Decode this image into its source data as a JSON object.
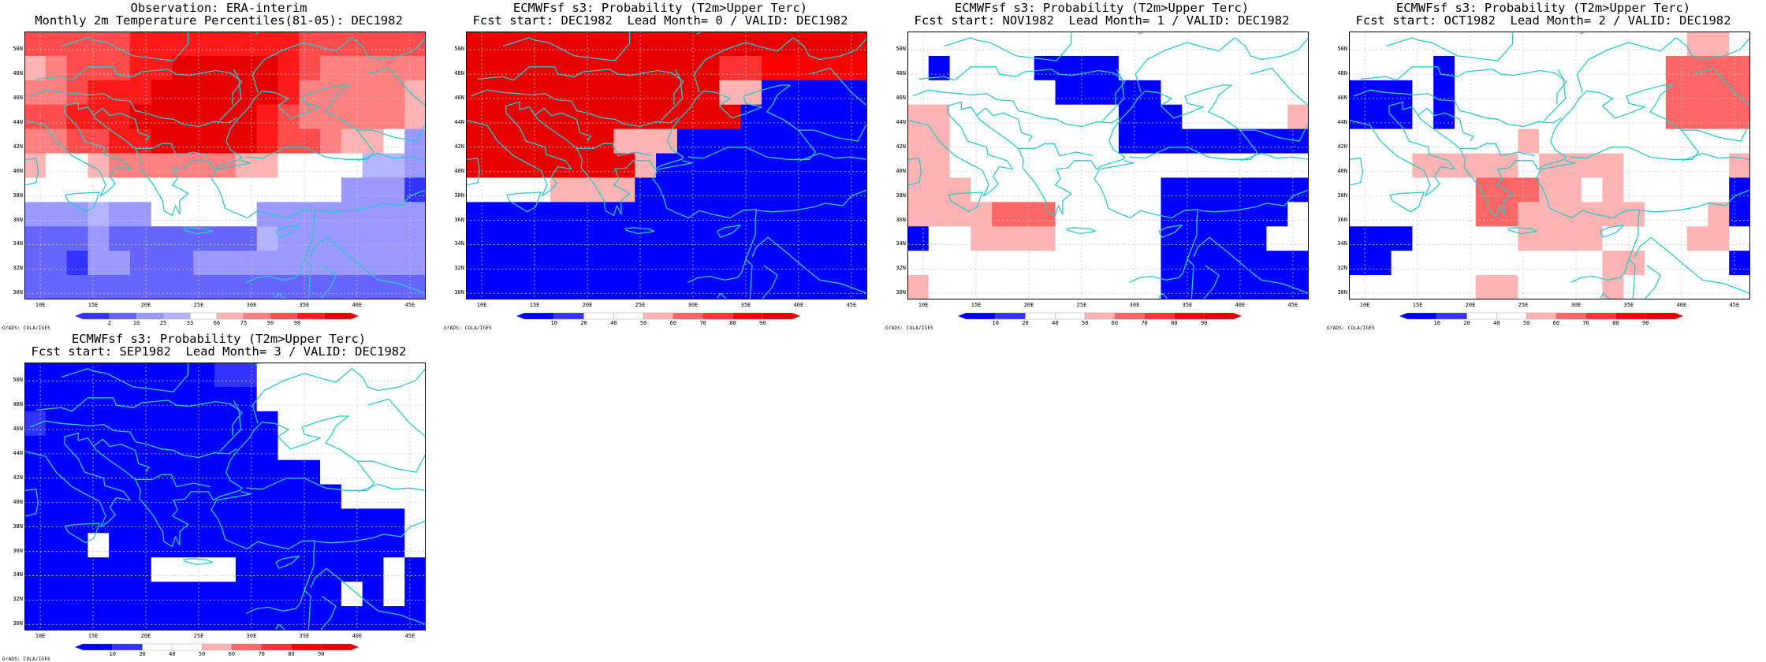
{
  "credit": "GrADS: COLA/IGES",
  "colors": {
    "coast": "#2ec8c8",
    "grid": "#c8c8c8",
    "observation_scale": [
      "#3333ff",
      "#6666ff",
      "#9999ff",
      "#b3b3ff",
      "#ffffff",
      "#ffb3b3",
      "#ff8080",
      "#ff4d4d",
      "#ff1a1a",
      "#e60000"
    ],
    "probability_scale": [
      "#0000ff",
      "#3333ff",
      "#ffffff",
      "#ffffff",
      "#ffb3b3",
      "#ff6666",
      "#ff3333",
      "#ff0000",
      "#e60000"
    ]
  },
  "axes": {
    "lat_labels": [
      "50N",
      "48N",
      "46N",
      "44N",
      "42N",
      "40N",
      "38N",
      "36N",
      "34N",
      "32N",
      "30N"
    ],
    "lon_labels": [
      "10E",
      "15E",
      "20E",
      "25E",
      "30E",
      "35E",
      "40E",
      "45E"
    ]
  },
  "panels": [
    {
      "id": "obs",
      "title_line1": "Observation: ERA-interim",
      "title_line2": "Monthly 2m Temperature Percentiles(81-05): DEC1982",
      "scale": "observation",
      "colorbar_labels": [
        "2",
        "10",
        "25",
        "33",
        "66",
        "75",
        "90",
        "98"
      ],
      "grid": [
        "7777788888888777777",
        "5677788999998766666",
        "6678889999998666665",
        "7788899999987666665",
        "6677889999987765542",
        "5445666666554444332",
        "4444444444444442220",
        "2223224444422222222",
        "1112111111132222222",
        "1102211122222222222",
        "1111111111111111111"
      ]
    },
    {
      "id": "lead0",
      "title_line1": "ECMWFsf s3: Probability (T2m>Upper Terc)",
      "title_line2": "Fcst start: DEC1982  Lead Month= 0 / VALID: DEC1982",
      "scale": "probability",
      "colorbar_labels": [
        "10",
        "20",
        "40",
        "50",
        "60",
        "70",
        "80",
        "90"
      ],
      "grid": [
        "8888888888888888888",
        "8888888888886677777",
        "8888888888884400000",
        "8888888888888000000",
        "8888888444000000000",
        "8888888840000000000",
        "3333444400000000000",
        "0000000000000000000",
        "0000000000000000000",
        "0000000000000000000",
        "0000000000000000000"
      ]
    },
    {
      "id": "lead1",
      "title_line1": "ECMWFsf s3: Probability (T2m>Upper Terc)",
      "title_line2": "Fcst start: NOV1982  Lead Month= 1 / VALID: DEC1982",
      "scale": "probability",
      "colorbar_labels": [
        "10",
        "20",
        "40",
        "50",
        "60",
        "70",
        "80",
        "90"
      ],
      "grid": [
        "2222222222222222222",
        "2022220000222222222",
        "2222222000002222222",
        "4422222222000222224",
        "4422222222000000000",
        "4422222222222222222",
        "4442222222220000000",
        "4444555222220000002",
        "0224444222220000022",
        "2222222222220000000",
        "4222222222220000000"
      ]
    },
    {
      "id": "lead2",
      "title_line1": "ECMWFsf s3: Probability (T2m>Upper Terc)",
      "title_line2": "Fcst start: OCT1982  Lead Month= 2 / VALID: DEC1982",
      "scale": "probability",
      "colorbar_labels": [
        "10",
        "20",
        "40",
        "50",
        "60",
        "70",
        "80",
        "90"
      ],
      "grid": [
        "2222222222222222442",
        "2222022222222225555",
        "0002022222222225555",
        "0002022222222225555",
        "2222222242222222222",
        "2224444424444222224",
        "2222225554424222220",
        "2222225544444422240",
        "0002222244442222442",
        "0022222222224422220",
        "2222224422224222222"
      ]
    },
    {
      "id": "lead3",
      "title_line1": "ECMWFsf s3: Probability (T2m>Upper Terc)",
      "title_line2": "Fcst start: SEP1982  Lead Month= 3 / VALID: DEC1982",
      "scale": "probability",
      "colorbar_labels": [
        "10",
        "20",
        "40",
        "50",
        "60",
        "70",
        "80",
        "90"
      ],
      "grid": [
        "0000000001122222222",
        "0000000000022222222",
        "1000000000002222222",
        "0000000000002222222",
        "0000000000000022222",
        "0000000000000002222",
        "0000000000000000002",
        "0002000000000000002",
        "0000002222000000020",
        "0000000000000002020",
        "0000000000000000000"
      ]
    }
  ]
}
